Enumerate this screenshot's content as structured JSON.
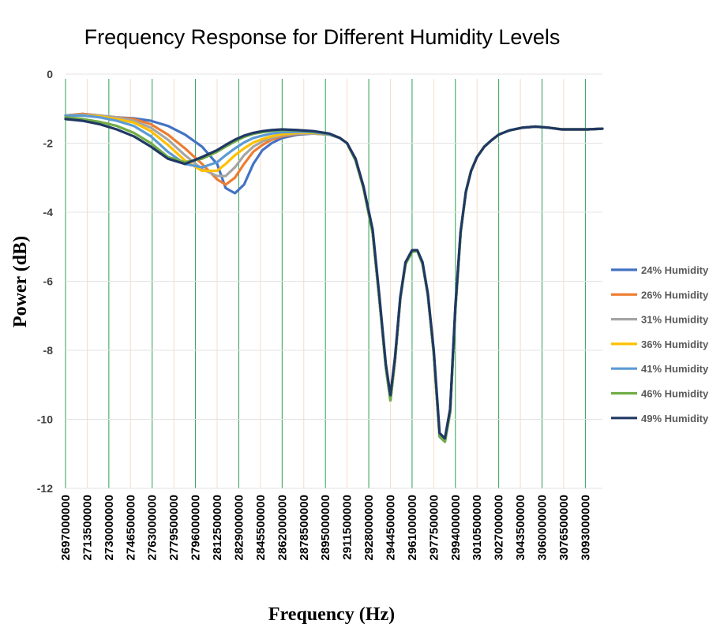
{
  "chart_data": {
    "type": "line",
    "title": "Frequency Response for Different Humidity Levels",
    "xlabel": "Frequency (Hz)",
    "ylabel": "Power (dB)",
    "ylim": [
      -12,
      0
    ],
    "yticks": [
      0,
      -2,
      -4,
      -6,
      -8,
      -10,
      -12
    ],
    "xlim": [
      2697000000,
      3106000000
    ],
    "xticks": [
      2697000000,
      2713500000,
      2730000000,
      2746500000,
      2763000000,
      2779500000,
      2796000000,
      2812500000,
      2829000000,
      2845500000,
      2862000000,
      2878500000,
      2895000000,
      2911500000,
      2928000000,
      2944500000,
      2961000000,
      2977500000,
      2994000000,
      3010500000,
      3027000000,
      3043500000,
      3060000000,
      3076500000,
      3093000000
    ],
    "grid": true,
    "legend_position": "right",
    "x": [
      2697000000,
      2710000000,
      2723000000,
      2736000000,
      2749000000,
      2762000000,
      2775000000,
      2788000000,
      2801000000,
      2812500000,
      2819000000,
      2826000000,
      2833000000,
      2840000000,
      2847000000,
      2854000000,
      2862000000,
      2874000000,
      2886000000,
      2898000000,
      2906000000,
      2911500000,
      2918000000,
      2924000000,
      2931000000,
      2936000000,
      2941000000,
      2944500000,
      2948000000,
      2952000000,
      2956000000,
      2961000000,
      2965000000,
      2969000000,
      2973000000,
      2977500000,
      2982000000,
      2986000000,
      2990000000,
      2994000000,
      2998000000,
      3002000000,
      3006000000,
      3010500000,
      3016000000,
      3022000000,
      3027000000,
      3035000000,
      3045000000,
      3055000000,
      3065000000,
      3075000000,
      3085000000,
      3095000000,
      3106000000
    ],
    "series": [
      {
        "name": "24% Humidity",
        "color": "#4472C4",
        "values": [
          -1.2,
          -1.15,
          -1.2,
          -1.25,
          -1.28,
          -1.35,
          -1.5,
          -1.75,
          -2.1,
          -2.6,
          -3.3,
          -3.45,
          -3.2,
          -2.6,
          -2.2,
          -2.0,
          -1.85,
          -1.75,
          -1.72,
          -1.75,
          -1.85,
          -2.0,
          -2.5,
          -3.3,
          -4.6,
          -6.5,
          -8.5,
          -9.45,
          -8.3,
          -6.5,
          -5.5,
          -5.15,
          -5.12,
          -5.5,
          -6.4,
          -8.1,
          -10.5,
          -10.65,
          -9.8,
          -6.8,
          -4.6,
          -3.4,
          -2.8,
          -2.4,
          -2.1,
          -1.9,
          -1.75,
          -1.63,
          -1.55,
          -1.52,
          -1.55,
          -1.6,
          -1.6,
          -1.6,
          -1.58
        ]
      },
      {
        "name": "26% Humidity",
        "color": "#ED7D31",
        "values": [
          -1.2,
          -1.15,
          -1.2,
          -1.25,
          -1.3,
          -1.45,
          -1.75,
          -2.15,
          -2.6,
          -3.05,
          -3.2,
          -3.0,
          -2.6,
          -2.25,
          -2.05,
          -1.9,
          -1.8,
          -1.73,
          -1.72,
          -1.75,
          -1.85,
          -2.0,
          -2.5,
          -3.3,
          -4.6,
          -6.5,
          -8.5,
          -9.45,
          -8.3,
          -6.5,
          -5.5,
          -5.15,
          -5.12,
          -5.5,
          -6.4,
          -8.1,
          -10.5,
          -10.65,
          -9.8,
          -6.8,
          -4.6,
          -3.4,
          -2.8,
          -2.4,
          -2.1,
          -1.9,
          -1.75,
          -1.63,
          -1.55,
          -1.52,
          -1.55,
          -1.6,
          -1.6,
          -1.6,
          -1.58
        ]
      },
      {
        "name": "31% Humidity",
        "color": "#A5A5A5",
        "values": [
          -1.2,
          -1.18,
          -1.2,
          -1.25,
          -1.35,
          -1.55,
          -1.9,
          -2.35,
          -2.75,
          -2.95,
          -2.95,
          -2.7,
          -2.35,
          -2.1,
          -1.95,
          -1.85,
          -1.77,
          -1.72,
          -1.72,
          -1.75,
          -1.85,
          -2.0,
          -2.5,
          -3.3,
          -4.6,
          -6.5,
          -8.5,
          -9.45,
          -8.3,
          -6.5,
          -5.5,
          -5.15,
          -5.12,
          -5.5,
          -6.4,
          -8.1,
          -10.5,
          -10.65,
          -9.8,
          -6.8,
          -4.6,
          -3.4,
          -2.8,
          -2.4,
          -2.1,
          -1.9,
          -1.75,
          -1.63,
          -1.55,
          -1.52,
          -1.55,
          -1.6,
          -1.6,
          -1.6,
          -1.58
        ]
      },
      {
        "name": "36% Humidity",
        "color": "#FFC000",
        "values": [
          -1.2,
          -1.2,
          -1.22,
          -1.3,
          -1.4,
          -1.65,
          -2.05,
          -2.5,
          -2.8,
          -2.8,
          -2.6,
          -2.35,
          -2.15,
          -1.98,
          -1.88,
          -1.8,
          -1.74,
          -1.7,
          -1.7,
          -1.75,
          -1.85,
          -2.0,
          -2.5,
          -3.3,
          -4.6,
          -6.5,
          -8.5,
          -9.45,
          -8.3,
          -6.5,
          -5.5,
          -5.15,
          -5.12,
          -5.5,
          -6.4,
          -8.1,
          -10.5,
          -10.65,
          -9.8,
          -6.8,
          -4.6,
          -3.4,
          -2.8,
          -2.4,
          -2.1,
          -1.9,
          -1.75,
          -1.63,
          -1.55,
          -1.52,
          -1.55,
          -1.6,
          -1.6,
          -1.6,
          -1.58
        ]
      },
      {
        "name": "41% Humidity",
        "color": "#5B9BD5",
        "values": [
          -1.2,
          -1.2,
          -1.25,
          -1.35,
          -1.5,
          -1.8,
          -2.25,
          -2.6,
          -2.7,
          -2.55,
          -2.35,
          -2.15,
          -1.98,
          -1.85,
          -1.78,
          -1.72,
          -1.68,
          -1.67,
          -1.68,
          -1.75,
          -1.85,
          -2.0,
          -2.5,
          -3.3,
          -4.6,
          -6.5,
          -8.5,
          -9.45,
          -8.3,
          -6.5,
          -5.5,
          -5.15,
          -5.12,
          -5.5,
          -6.4,
          -8.1,
          -10.5,
          -10.65,
          -9.8,
          -6.8,
          -4.6,
          -3.4,
          -2.8,
          -2.4,
          -2.1,
          -1.9,
          -1.75,
          -1.63,
          -1.55,
          -1.52,
          -1.55,
          -1.6,
          -1.6,
          -1.6,
          -1.58
        ]
      },
      {
        "name": "46% Humidity",
        "color": "#70AD47",
        "values": [
          -1.25,
          -1.3,
          -1.38,
          -1.5,
          -1.7,
          -2.0,
          -2.4,
          -2.55,
          -2.45,
          -2.25,
          -2.1,
          -1.95,
          -1.82,
          -1.73,
          -1.68,
          -1.64,
          -1.62,
          -1.63,
          -1.66,
          -1.73,
          -1.85,
          -2.0,
          -2.5,
          -3.3,
          -4.6,
          -6.5,
          -8.5,
          -9.45,
          -8.3,
          -6.5,
          -5.5,
          -5.15,
          -5.12,
          -5.5,
          -6.4,
          -8.1,
          -10.5,
          -10.65,
          -9.8,
          -6.8,
          -4.6,
          -3.4,
          -2.8,
          -2.4,
          -2.1,
          -1.9,
          -1.75,
          -1.63,
          -1.55,
          -1.52,
          -1.55,
          -1.6,
          -1.6,
          -1.6,
          -1.58
        ]
      },
      {
        "name": "49% Humidity",
        "color": "#203864",
        "values": [
          -1.3,
          -1.35,
          -1.45,
          -1.6,
          -1.8,
          -2.1,
          -2.45,
          -2.6,
          -2.4,
          -2.2,
          -2.05,
          -1.9,
          -1.78,
          -1.7,
          -1.65,
          -1.62,
          -1.6,
          -1.62,
          -1.65,
          -1.72,
          -1.85,
          -2.0,
          -2.45,
          -3.25,
          -4.5,
          -6.4,
          -8.4,
          -9.3,
          -8.2,
          -6.45,
          -5.45,
          -5.1,
          -5.1,
          -5.45,
          -6.35,
          -8.0,
          -10.4,
          -10.55,
          -9.7,
          -6.7,
          -4.55,
          -3.4,
          -2.8,
          -2.4,
          -2.1,
          -1.9,
          -1.75,
          -1.63,
          -1.55,
          -1.52,
          -1.55,
          -1.6,
          -1.6,
          -1.6,
          -1.58
        ]
      }
    ]
  }
}
